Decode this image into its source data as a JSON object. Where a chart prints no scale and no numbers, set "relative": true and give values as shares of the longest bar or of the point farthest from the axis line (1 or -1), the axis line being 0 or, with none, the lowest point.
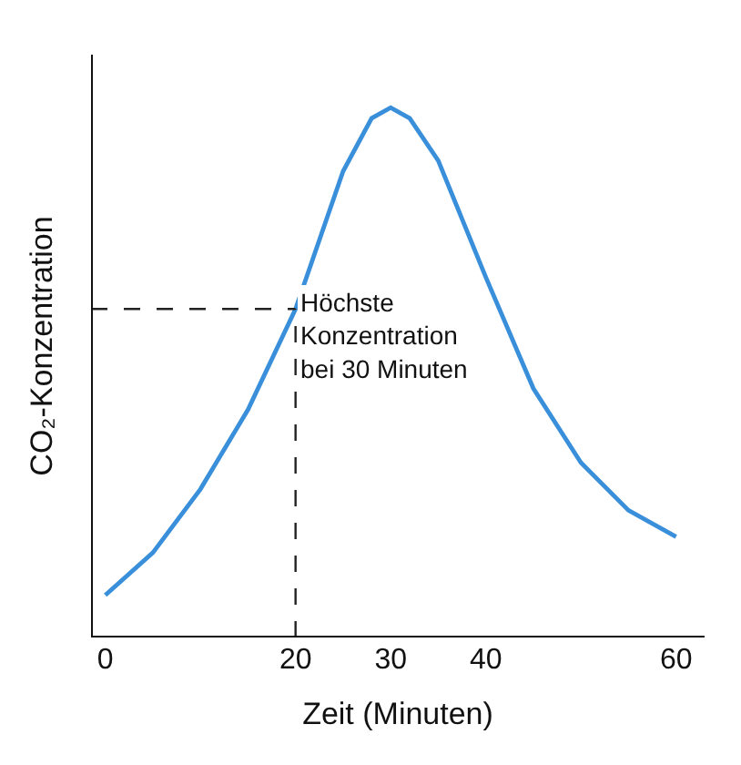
{
  "chart_data": {
    "type": "line",
    "relative": true,
    "xlabel": "Zeit (Minuten)",
    "ylabel": "CO₂-Konzentration",
    "x": [
      0,
      5,
      10,
      15,
      20,
      25,
      28,
      30,
      32,
      35,
      40,
      45,
      50,
      55,
      60
    ],
    "series": [
      {
        "color": "#3a8fdb",
        "values": [
          0.08,
          0.16,
          0.28,
          0.43,
          0.62,
          0.88,
          0.98,
          1.0,
          0.98,
          0.9,
          0.68,
          0.47,
          0.33,
          0.24,
          0.19
        ]
      }
    ],
    "xlim": [
      -1.5,
      63
    ],
    "xticks": [
      0,
      20,
      30,
      40,
      60
    ],
    "ref_lines": [
      {
        "axis": "x",
        "value": 20,
        "line_style": "dashed",
        "color": "#222222"
      },
      {
        "axis": "y",
        "value": 0.62,
        "line_style": "dashed",
        "color": "#222222"
      }
    ],
    "annotations": [
      "Höchste\nKonzentration\nbei 30 Minuten"
    ],
    "marker": "none",
    "line_style": "solid"
  }
}
